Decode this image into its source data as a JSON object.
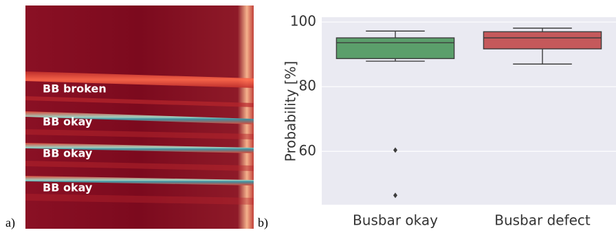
{
  "figure": {
    "panel_a": {
      "label": "a)",
      "annotations": [
        "BB broken",
        "BB okay",
        "BB okay",
        "BB okay"
      ]
    },
    "panel_b": {
      "label": "b)"
    }
  },
  "chart_data": {
    "type": "box",
    "ylabel": "Probability [%]",
    "categories": [
      "Busbar okay",
      "Busbar defect"
    ],
    "boxes": [
      {
        "whislo": 87.9,
        "q1": 88.7,
        "med": 93.6,
        "q3": 95.1,
        "whishi": 97.2,
        "fliers": [
          60.4,
          46.4
        ],
        "color": "#5b9f6b"
      },
      {
        "whislo": 87.0,
        "q1": 91.7,
        "med": 95.1,
        "q3": 97.0,
        "whishi": 98.1,
        "fliers": [],
        "color": "#c5595b"
      }
    ],
    "ylim": [
      43.5,
      101.5
    ],
    "yticks": [
      60,
      80,
      100
    ],
    "grid": true
  }
}
